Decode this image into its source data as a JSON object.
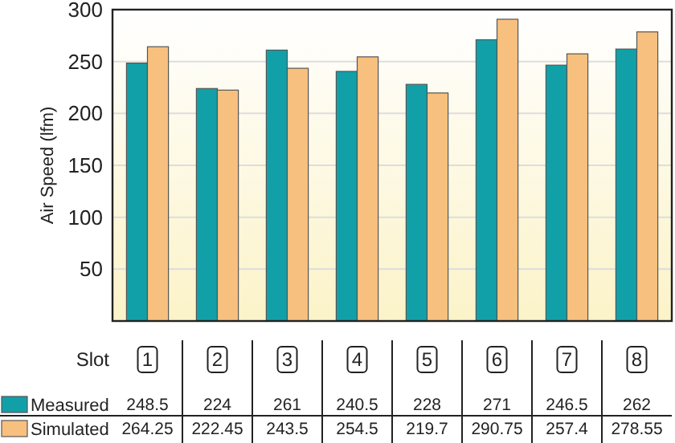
{
  "chart_data": {
    "type": "bar",
    "ylabel": "Air Speed (lfm)",
    "xlabel": "Slot",
    "categories": [
      "1",
      "2",
      "3",
      "4",
      "5",
      "6",
      "7",
      "8"
    ],
    "series": [
      {
        "name": "Measured",
        "color": "#12a0a8",
        "values": [
          248.5,
          224,
          261,
          240.5,
          228,
          271,
          246.5,
          262
        ]
      },
      {
        "name": "Simulated",
        "color": "#f8c07e",
        "values": [
          264.25,
          222.45,
          243.5,
          254.5,
          219.7,
          290.75,
          257.4,
          278.55
        ]
      }
    ],
    "ylim": [
      0,
      300
    ],
    "yticks": [
      50,
      100,
      150,
      200,
      250,
      300
    ],
    "grid": "y",
    "legend": "bottom",
    "data_labels": true
  }
}
